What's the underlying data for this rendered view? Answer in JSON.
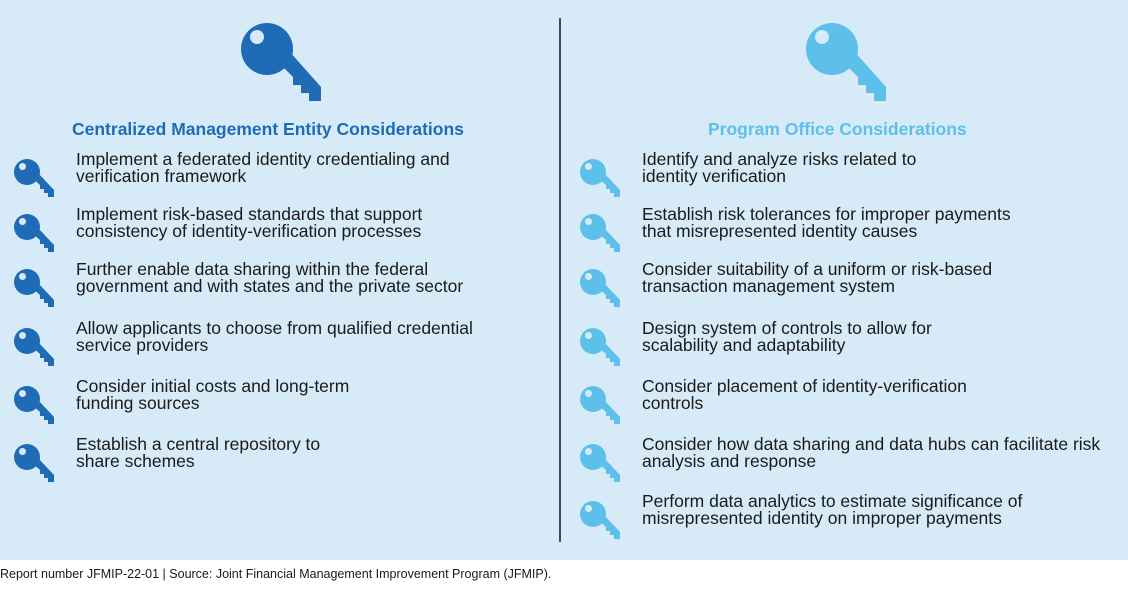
{
  "colors": {
    "left_accent": "#1f6bb5",
    "right_accent": "#5cc0ea",
    "background": "#d6ebf7"
  },
  "left": {
    "title": "Centralized Management Entity Considerations",
    "icon": "key-icon",
    "items": [
      [
        "Implement a federated identity credentialing and",
        "verification framework"
      ],
      [
        "Implement risk-based standards that support",
        "consistency of identity-verification processes"
      ],
      [
        "Further enable data sharing within the federal",
        "government and with states and the private sector"
      ],
      [
        "Allow applicants to choose from qualified credential",
        "service providers"
      ],
      [
        "Consider initial costs and long-term",
        "funding sources"
      ],
      [
        "Establish a central repository to",
        "share schemes"
      ]
    ]
  },
  "right": {
    "title": "Program Office Considerations",
    "icon": "key-icon",
    "items": [
      [
        "Identify and analyze risks related to",
        "identity verification"
      ],
      [
        "Establish risk tolerances for improper payments",
        "that misrepresented identity causes"
      ],
      [
        "Consider suitability of a uniform or risk-based",
        "transaction management system"
      ],
      [
        "Design system of controls to allow for",
        "scalability and adaptability"
      ],
      [
        "Consider placement of identity-verification",
        "controls"
      ],
      [
        "Consider how data sharing and data hubs can facilitate risk",
        "analysis and response"
      ],
      [
        "Perform data analytics to estimate significance of",
        "misrepresented identity on improper payments"
      ]
    ]
  },
  "footer": "Report number JFMIP-22-01  |  Source: Joint Financial Management Improvement Program (JFMIP)."
}
